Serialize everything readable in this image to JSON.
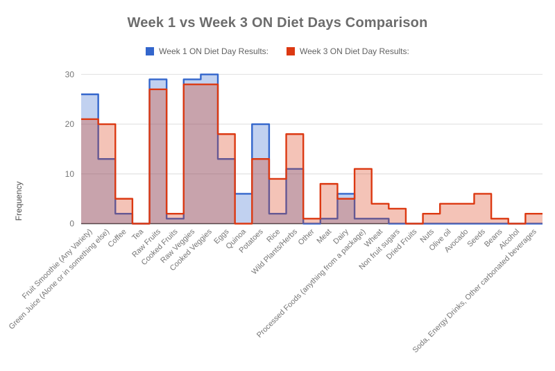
{
  "title": "Week 1 vs Week 3 ON Diet Days Comparison",
  "chart_data": {
    "type": "area",
    "variant": "stepped-area",
    "title": "Week 1 vs Week 3 ON Diet Days Comparison",
    "xlabel": "",
    "ylabel": "Frequency",
    "ylim": [
      0,
      30
    ],
    "yticks": [
      0,
      10,
      20,
      30
    ],
    "grid": true,
    "legend_position": "top",
    "axis_color": "#424242",
    "grid_color": "#e3e3e3",
    "tick_label_color": "#757575",
    "categories": [
      "Fruit Smoothie (Any Variety)",
      "Green Juice (Alone or in something else)",
      "Coffee",
      "Tea",
      "Raw Fruits",
      "Cooked Fruits",
      "Raw Veggies",
      "Cooked Veggies",
      "Eggs",
      "Quinoa",
      "Potatoes",
      "Rice",
      "Wild Plants/Herbs",
      "Other",
      "Meat",
      "Dairy",
      "Processed Foods (anything from a package)",
      "Wheat",
      "Non fruit sugars",
      "Dried Fruits",
      "Nuts",
      "Olive oil",
      "Avocado",
      "Seeds",
      "Beans",
      "Alcohol",
      "Soda, Energy Drinks, Other carbonated beverages"
    ],
    "series": [
      {
        "name": "Week 1 ON Diet Day Results:",
        "color": "#3366CC",
        "fill_opacity": 0.3,
        "values": [
          26,
          13,
          2,
          0,
          29,
          1,
          29,
          30,
          13,
          6,
          20,
          2,
          11,
          0,
          1,
          6,
          1,
          1,
          0,
          0,
          0,
          0,
          0,
          0,
          0,
          0,
          0
        ]
      },
      {
        "name": "Week 3 ON Diet Day Results:",
        "color": "#DC3912",
        "fill_opacity": 0.3,
        "values": [
          21,
          20,
          5,
          0,
          27,
          2,
          28,
          28,
          18,
          0,
          13,
          9,
          18,
          1,
          8,
          5,
          11,
          4,
          3,
          0,
          2,
          4,
          4,
          6,
          1,
          0,
          2
        ]
      }
    ]
  }
}
